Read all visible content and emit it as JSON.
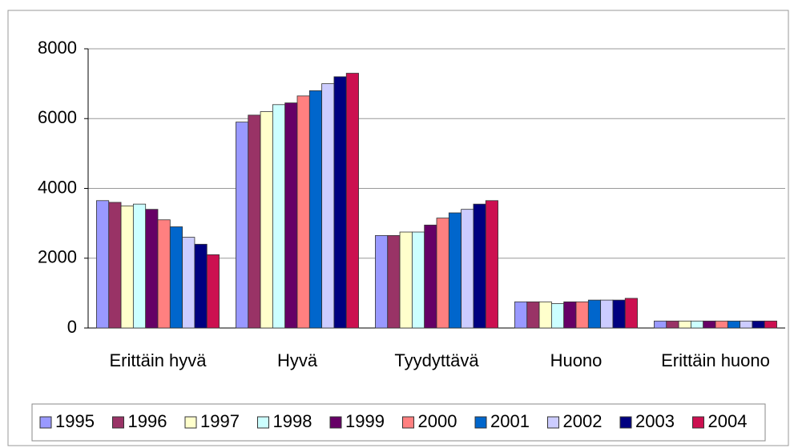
{
  "chart_data": {
    "type": "bar",
    "categories": [
      "Erittäin hyvä",
      "Hyvä",
      "Tyydyttävä",
      "Huono",
      "Erittäin huono"
    ],
    "series": [
      {
        "name": "1995",
        "color": "#9999ff",
        "values": [
          3650,
          5900,
          2650,
          750,
          200
        ]
      },
      {
        "name": "1996",
        "color": "#993366",
        "values": [
          3600,
          6100,
          2650,
          750,
          200
        ]
      },
      {
        "name": "1997",
        "color": "#ffffcc",
        "values": [
          3500,
          6200,
          2750,
          750,
          200
        ]
      },
      {
        "name": "1998",
        "color": "#ccffff",
        "values": [
          3550,
          6400,
          2750,
          700,
          200
        ]
      },
      {
        "name": "1999",
        "color": "#660066",
        "values": [
          3400,
          6450,
          2950,
          750,
          200
        ]
      },
      {
        "name": "2000",
        "color": "#ff8080",
        "values": [
          3100,
          6650,
          3150,
          750,
          200
        ]
      },
      {
        "name": "2001",
        "color": "#0066cc",
        "values": [
          2900,
          6800,
          3300,
          800,
          200
        ]
      },
      {
        "name": "2002",
        "color": "#ccccff",
        "values": [
          2600,
          7000,
          3400,
          800,
          200
        ]
      },
      {
        "name": "2003",
        "color": "#000080",
        "values": [
          2400,
          7200,
          3550,
          800,
          200
        ]
      },
      {
        "name": "2004",
        "color": "#cc1050",
        "values": [
          2100,
          7300,
          3650,
          850,
          200
        ]
      }
    ],
    "ylim": [
      0,
      8000
    ],
    "yticks": [
      0,
      2000,
      4000,
      6000,
      8000
    ],
    "grid": true,
    "legend": "bottom"
  }
}
